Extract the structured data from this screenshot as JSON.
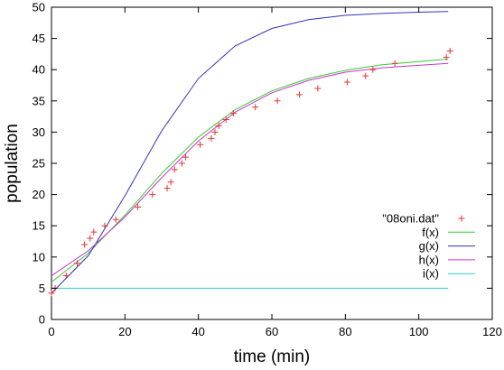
{
  "chart_data": {
    "type": "scatter",
    "title": "",
    "xlabel": "time (min)",
    "ylabel": "population",
    "xlim": [
      0,
      120
    ],
    "ylim": [
      0,
      50
    ],
    "xticks": [
      0,
      20,
      40,
      60,
      80,
      100,
      120
    ],
    "yticks": [
      0,
      5,
      10,
      15,
      20,
      25,
      30,
      35,
      40,
      45,
      50
    ],
    "grid": false,
    "legend_position": "right",
    "series": [
      {
        "name": "\"08oni.dat\"",
        "kind": "points",
        "marker": "plus",
        "color": "#e8352e",
        "points": [
          [
            0,
            4.2
          ],
          [
            1,
            5
          ],
          [
            4,
            7
          ],
          [
            7,
            9
          ],
          [
            9,
            12
          ],
          [
            10.5,
            13
          ],
          [
            11.5,
            14
          ],
          [
            14.5,
            15
          ],
          [
            17.5,
            16
          ],
          [
            23.5,
            18
          ],
          [
            27.5,
            20
          ],
          [
            31.5,
            21
          ],
          [
            32.5,
            22
          ],
          [
            33.5,
            24
          ],
          [
            35.5,
            25
          ],
          [
            36.5,
            26
          ],
          [
            40.5,
            28
          ],
          [
            43.5,
            29
          ],
          [
            44.5,
            30
          ],
          [
            45.5,
            31
          ],
          [
            47.5,
            32
          ],
          [
            49.5,
            33
          ],
          [
            55.5,
            34
          ],
          [
            61.5,
            35
          ],
          [
            67.5,
            36
          ],
          [
            72.5,
            37
          ],
          [
            80.5,
            38
          ],
          [
            85.5,
            39
          ],
          [
            87.5,
            40
          ],
          [
            93.5,
            41
          ],
          [
            107.5,
            42
          ],
          [
            108.5,
            43
          ]
        ]
      },
      {
        "name": "f(x)",
        "kind": "line",
        "color": "#33cc33",
        "points": [
          [
            0,
            6.0
          ],
          [
            10,
            10.6
          ],
          [
            20,
            16.7
          ],
          [
            30,
            23.4
          ],
          [
            40,
            29.2
          ],
          [
            50,
            33.6
          ],
          [
            60,
            36.6
          ],
          [
            70,
            38.6
          ],
          [
            80,
            39.9
          ],
          [
            90,
            40.8
          ],
          [
            100,
            41.3
          ],
          [
            108,
            41.7
          ]
        ]
      },
      {
        "name": "g(x)",
        "kind": "line",
        "color": "#3333bb",
        "points": [
          [
            0,
            4.2
          ],
          [
            10,
            10.2
          ],
          [
            20,
            19.8
          ],
          [
            30,
            30.2
          ],
          [
            40,
            38.6
          ],
          [
            50,
            43.8
          ],
          [
            60,
            46.6
          ],
          [
            70,
            48.0
          ],
          [
            80,
            48.7
          ],
          [
            90,
            49.0
          ],
          [
            100,
            49.2
          ],
          [
            108,
            49.3
          ]
        ]
      },
      {
        "name": "h(x)",
        "kind": "line",
        "color": "#cc33cc",
        "points": [
          [
            0,
            7.0
          ],
          [
            10,
            11.0
          ],
          [
            20,
            16.4
          ],
          [
            30,
            22.7
          ],
          [
            40,
            28.6
          ],
          [
            50,
            33.2
          ],
          [
            60,
            36.3
          ],
          [
            70,
            38.3
          ],
          [
            80,
            39.6
          ],
          [
            90,
            40.3
          ],
          [
            100,
            40.7
          ],
          [
            108,
            41.0
          ]
        ]
      },
      {
        "name": "i(x)",
        "kind": "line",
        "color": "#33cccc",
        "points": [
          [
            0,
            5.0
          ],
          [
            108,
            5.0
          ]
        ]
      }
    ]
  }
}
